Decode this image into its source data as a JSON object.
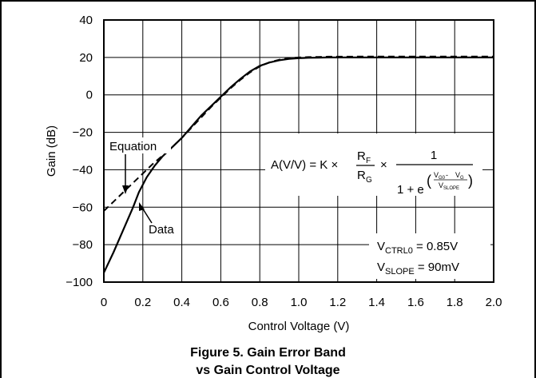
{
  "chart_data": {
    "type": "line",
    "title": "",
    "xlabel": "Control Voltage (V)",
    "ylabel": "Gain (dB)",
    "xlim": [
      0,
      2.0
    ],
    "ylim": [
      -100,
      40
    ],
    "x_ticks": [
      "0",
      "0.2",
      "0.4",
      "0.6",
      "0.8",
      "1.0",
      "1.2",
      "1.4",
      "1.6",
      "1.8",
      "2.0"
    ],
    "y_ticks": [
      "40",
      "20",
      "0",
      "−20",
      "−40",
      "−60",
      "−80",
      "−100"
    ],
    "grid": true,
    "series": [
      {
        "name": "Data",
        "style": "solid",
        "x": [
          0,
          0.05,
          0.1,
          0.15,
          0.18,
          0.22,
          0.26,
          0.3,
          0.35,
          0.4,
          0.45,
          0.5,
          0.55,
          0.6,
          0.65,
          0.7,
          0.75,
          0.8,
          0.85,
          0.9,
          0.95,
          1.0,
          1.05,
          1.1,
          1.15,
          1.2,
          1.4,
          1.6,
          1.8,
          2.0
        ],
        "y": [
          -95,
          -84,
          -72,
          -60,
          -52,
          -44,
          -38,
          -33,
          -28,
          -23,
          -17,
          -11,
          -6,
          -1,
          4,
          8.5,
          12.5,
          15.5,
          17.3,
          18.5,
          19.2,
          19.6,
          19.8,
          19.9,
          20,
          20,
          20,
          20,
          20,
          20
        ]
      },
      {
        "name": "Equation",
        "style": "dashed",
        "x": [
          0,
          0.05,
          0.1,
          0.15,
          0.2,
          0.25,
          0.3,
          0.35,
          0.4,
          0.45,
          0.5,
          0.55,
          0.6,
          0.65,
          0.7,
          0.75,
          0.8,
          0.85,
          0.9,
          0.95,
          1.0,
          1.05,
          1.1,
          1.15,
          1.2,
          1.4,
          1.6,
          1.8,
          2.0
        ],
        "y": [
          -62,
          -57,
          -52,
          -47,
          -42,
          -37,
          -32.5,
          -28,
          -23,
          -17.5,
          -12,
          -6.5,
          -1.5,
          3.5,
          8,
          12,
          15.2,
          17.4,
          18.8,
          19.6,
          20,
          20.2,
          20.3,
          20.4,
          20.4,
          20.5,
          20.5,
          20.5,
          20.5
        ]
      }
    ],
    "annotations": {
      "equation_label": "Equation",
      "data_label": "Data",
      "formula": {
        "lhs": "A(V/V) = K ×",
        "rf_main": "R",
        "rf_sub": "F",
        "rg_main": "R",
        "rg_sub": "G",
        "times": "×",
        "numerator": "1",
        "den_prefix": "1 + e",
        "exp_v0": "V",
        "exp_v0_sub": "G0",
        "exp_minus": " - ",
        "exp_vg": "V",
        "exp_vg_sub": "G",
        "exp_vslope": "V",
        "exp_vslope_sub": "SLOPE"
      },
      "params": [
        {
          "main": "V",
          "sub": "CTRL0",
          "value": " = 0.85V"
        },
        {
          "main": "V",
          "sub": "SLOPE",
          "value": " = 90mV"
        }
      ]
    }
  },
  "caption": {
    "line1": "Figure 5. Gain Error Band",
    "line2": "vs Gain Control Voltage"
  }
}
